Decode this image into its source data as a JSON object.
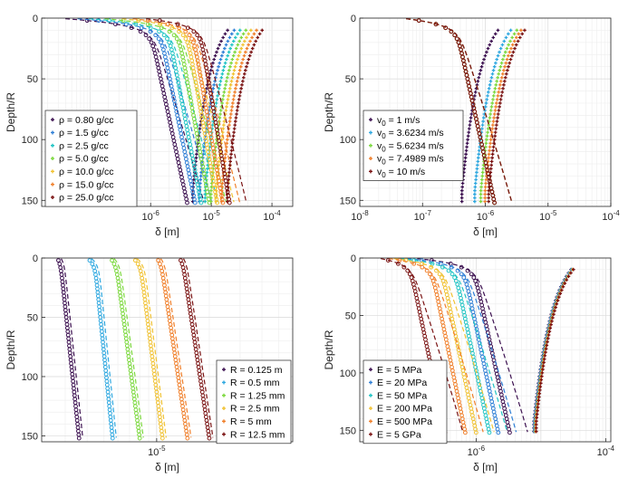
{
  "figure": {
    "ylabel": "Depth/R",
    "xlabel": "δ [m]"
  },
  "chart_data": [
    {
      "type": "scatter",
      "xscale": "log",
      "yreverse": true,
      "xlim": [
        1.6e-08,
        0.00022
      ],
      "ylim": [
        0,
        155
      ],
      "xticks": [
        {
          "v": 1e-06,
          "label": "10-6"
        },
        {
          "v": 1e-05,
          "label": "10-5"
        },
        {
          "v": 0.0001,
          "label": "10-4"
        }
      ],
      "yticks": [
        0,
        50,
        100,
        150
      ],
      "xlabel": "δ [m]",
      "ylabel": "Depth/R",
      "grid": true,
      "legend_loc": "bottom-left",
      "ymax_data": 152,
      "series": [
        {
          "name": "ρ = 0.80 g/cc",
          "color": "#3b0f4f",
          "x_m": [
            9e-07,
            4e-06
          ],
          "x_p": 3.5e-05,
          "x0": 2.8e-08
        },
        {
          "name": "ρ = 1.5 g/cc",
          "color": "#2f7fd6",
          "x_m": [
            1.3e-06,
            5.4e-06
          ],
          "x_p": 4.5e-05,
          "x0": 4.5e-08
        },
        {
          "name": "ρ = 2.5 g/cc",
          "color": "#21c4c4",
          "x_m": [
            1.8e-06,
            6.8e-06
          ],
          "x_p": 5.6e-05,
          "x0": 7e-08
        },
        {
          "name": "ρ = 5.0 g/cc",
          "color": "#7cd93e",
          "x_m": [
            2.6e-06,
            9.3e-06
          ],
          "x_p": 7e-05,
          "x0": 1.3e-07
        },
        {
          "name": "ρ = 10.0 g/cc",
          "color": "#f1c232",
          "x_m": [
            3.6e-06,
            1.25e-05
          ],
          "x_p": 8.5e-05,
          "x0": 2.6e-07
        },
        {
          "name": "ρ = 15.0 g/cc",
          "color": "#f07f2a",
          "x_m": [
            4.5e-06,
            1.55e-05
          ],
          "x_p": 0.000105,
          "x0": 4e-07
        },
        {
          "name": "ρ = 25.0 g/cc",
          "color": "#7a1212",
          "x_m": [
            6e-06,
            2e-05
          ],
          "x_p": 0.00013,
          "x0": 6.8e-07
        }
      ]
    },
    {
      "type": "scatter",
      "xscale": "log",
      "yreverse": true,
      "xlim": [
        1e-08,
        0.0001
      ],
      "ylim": [
        0,
        155
      ],
      "xticks": [
        {
          "v": 1e-08,
          "label": "10-8"
        },
        {
          "v": 1e-07,
          "label": "10-7"
        },
        {
          "v": 1e-06,
          "label": "10-6"
        },
        {
          "v": 1e-05,
          "label": "10-5"
        },
        {
          "v": 0.0001,
          "label": "10-4"
        }
      ],
      "yticks": [
        0,
        50,
        100,
        150
      ],
      "xlabel": "δ [m]",
      "ylabel": "Depth/R",
      "grid": true,
      "legend_loc": "bottom-left",
      "ymax_data": 152,
      "series": [
        {
          "name": "v0 = 1 m/s",
          "color": "#3b0f4f",
          "x_m": [
            3.2e-07,
            1.4e-06
          ],
          "x_p": 3e-06,
          "x0": 4.5e-08
        },
        {
          "name": "v0 = 3.6234 m/s",
          "color": "#2fa8e0",
          "x_m": [
            3.2e-07,
            1.4e-06
          ],
          "x_p": 4.8e-06,
          "x0": 4.5e-08
        },
        {
          "name": "v0 = 5.6234 m/s",
          "color": "#7cd93e",
          "x_m": [
            3.2e-07,
            1.4e-06
          ],
          "x_p": 6e-06,
          "x0": 4.5e-08
        },
        {
          "name": "v0 = 7.4989 m/s",
          "color": "#f07f2a",
          "x_m": [
            3.2e-07,
            1.4e-06
          ],
          "x_p": 7e-06,
          "x0": 4.5e-08
        },
        {
          "name": "v0 = 10 m/s",
          "color": "#7a1212",
          "x_m": [
            3.2e-07,
            1.4e-06
          ],
          "x_p": 8e-06,
          "x0": 4.5e-08
        }
      ]
    },
    {
      "type": "scatter",
      "xscale": "log",
      "yreverse": true,
      "xlim": [
        2.2e-06,
        6e-05
      ],
      "ylim": [
        0,
        155
      ],
      "xticks": [
        {
          "v": 1e-05,
          "label": "10-5"
        }
      ],
      "yticks": [
        0,
        50,
        100,
        150
      ],
      "xlabel": "δ [m]",
      "ylabel": "Depth/R",
      "grid": true,
      "legend_loc": "bottom-right",
      "ymax_data": 152,
      "series": [
        {
          "name": "R = 0.125 m",
          "color": "#3b0f4f",
          "x_m": [
            2.8e-06,
            3.6e-06
          ],
          "x_p": null,
          "x0": 2.7e-06
        },
        {
          "name": "R = 0.5 mm",
          "color": "#2fa8e0",
          "x_m": [
            4.4e-06,
            5.6e-06
          ],
          "x_p": null,
          "x0": 4e-06
        },
        {
          "name": "R = 1.25 mm",
          "color": "#7cd93e",
          "x_m": [
            5.8e-06,
            8e-06
          ],
          "x_p": null,
          "x0": 5.4e-06
        },
        {
          "name": "R = 2.5 mm",
          "color": "#f1c232",
          "x_m": [
            8e-06,
            1.08e-05
          ],
          "x_p": null,
          "x0": 7.3e-06
        },
        {
          "name": "R = 5 mm",
          "color": "#f07f2a",
          "x_m": [
            1.05e-05,
            1.5e-05
          ],
          "x_p": null,
          "x0": 1e-05
        },
        {
          "name": "R = 12.5 mm",
          "color": "#7a1212",
          "x_m": [
            1.4e-05,
            2e-05
          ],
          "x_p": null,
          "x0": 1.35e-05
        }
      ]
    },
    {
      "type": "scatter",
      "xscale": "log",
      "yreverse": true,
      "xlim": [
        1.6e-08,
        0.00012
      ],
      "ylim": [
        0,
        160
      ],
      "xticks": [
        {
          "v": 1e-06,
          "label": "10-6"
        },
        {
          "v": 0.0001,
          "label": "10-4"
        }
      ],
      "yticks": [
        0,
        50,
        100,
        150
      ],
      "xlabel": "δ [m]",
      "ylabel": "Depth/R",
      "grid": true,
      "legend_loc": "bottom-left",
      "ymax_data": 152,
      "series": [
        {
          "name": "E = 5 MPa",
          "color": "#3b0f4f",
          "x_m": [
            8.5e-07,
            3.3e-06
          ],
          "x_p": 5.5e-05,
          "x0": 1e-07
        },
        {
          "name": "E = 20 MPa",
          "color": "#2f7fd6",
          "x_m": [
            6e-07,
            2.2e-06
          ],
          "x_p": 5.6e-05,
          "x0": 7e-08
        },
        {
          "name": "E = 50 MPa",
          "color": "#21c4c4",
          "x_m": [
            4.3e-07,
            1.6e-06
          ],
          "x_p": 5.7e-05,
          "x0": 5.5e-08
        },
        {
          "name": "E = 200 MPa",
          "color": "#f1c232",
          "x_m": [
            2.7e-07,
            1e-06
          ],
          "x_p": 5.8e-05,
          "x0": 4.5e-08
        },
        {
          "name": "E = 500 MPa",
          "color": "#f07f2a",
          "x_m": [
            1.9e-07,
            6.8e-07
          ],
          "x_p": 5.9e-05,
          "x0": 3.8e-08
        },
        {
          "name": "E = 5 GPa",
          "color": "#7a1212",
          "x_m": [
            9e-08,
            3.3e-07
          ],
          "x_p": 6e-05,
          "x0": 3e-08
        }
      ]
    }
  ]
}
